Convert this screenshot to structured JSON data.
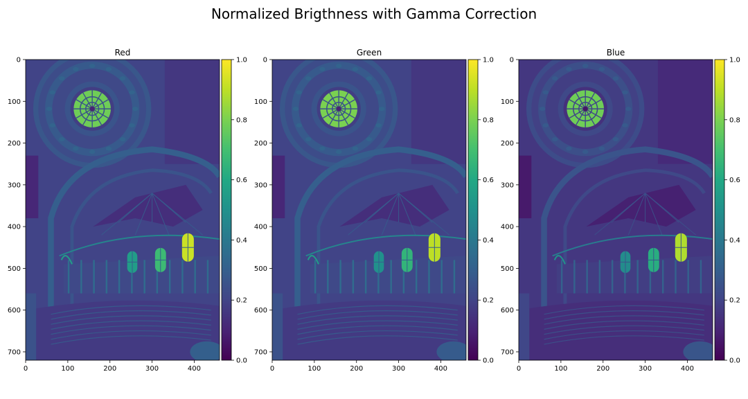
{
  "figure": {
    "title": "Normalized Brigthness with Gamma Correction"
  },
  "colormap": {
    "name": "viridis",
    "low_color": "#440154",
    "high_color": "#fde725"
  },
  "chart_data": [
    {
      "type": "heatmap",
      "title": "Red",
      "xlabel": "",
      "ylabel": "",
      "xlim": [
        0,
        460
      ],
      "ylim": [
        720,
        0
      ],
      "x_ticks": [
        0,
        100,
        200,
        300,
        400
      ],
      "y_ticks": [
        0,
        100,
        200,
        300,
        400,
        500,
        600,
        700
      ],
      "colorbar": {
        "range": [
          0.0,
          1.0
        ],
        "ticks": [
          "0.0",
          "0.2",
          "0.4",
          "0.6",
          "0.8",
          "1.0"
        ]
      },
      "image": {
        "background_level": 0.2,
        "dome_window_level": 0.78,
        "window_levels": [
          0.55,
          0.68,
          0.92
        ],
        "floor_glow_level": 0.32
      }
    },
    {
      "type": "heatmap",
      "title": "Green",
      "xlabel": "",
      "ylabel": "",
      "xlim": [
        0,
        460
      ],
      "ylim": [
        720,
        0
      ],
      "x_ticks": [
        0,
        100,
        200,
        300,
        400
      ],
      "y_ticks": [
        0,
        100,
        200,
        300,
        400,
        500,
        600,
        700
      ],
      "colorbar": {
        "range": [
          0.0,
          1.0
        ],
        "ticks": [
          "0.0",
          "0.2",
          "0.4",
          "0.6",
          "0.8",
          "1.0"
        ]
      },
      "image": {
        "background_level": 0.2,
        "dome_window_level": 0.8,
        "window_levels": [
          0.5,
          0.65,
          0.9
        ],
        "floor_glow_level": 0.3
      }
    },
    {
      "type": "heatmap",
      "title": "Blue",
      "xlabel": "",
      "ylabel": "",
      "xlim": [
        0,
        460
      ],
      "ylim": [
        720,
        0
      ],
      "x_ticks": [
        0,
        100,
        200,
        300,
        400
      ],
      "y_ticks": [
        0,
        100,
        200,
        300,
        400,
        500,
        600,
        700
      ],
      "colorbar": {
        "range": [
          0.0,
          1.0
        ],
        "ticks": [
          "0.0",
          "0.2",
          "0.4",
          "0.6",
          "0.8",
          "1.0"
        ]
      },
      "image": {
        "background_level": 0.16,
        "dome_window_level": 0.78,
        "window_levels": [
          0.48,
          0.62,
          0.88
        ],
        "floor_glow_level": 0.28
      }
    }
  ]
}
